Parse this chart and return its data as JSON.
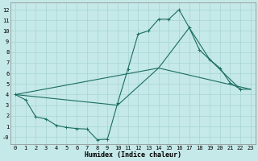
{
  "title": "",
  "xlabel": "Humidex (Indice chaleur)",
  "xlim": [
    -0.5,
    23.5
  ],
  "ylim": [
    -0.7,
    12.7
  ],
  "yticks": [
    0,
    1,
    2,
    3,
    4,
    5,
    6,
    7,
    8,
    9,
    10,
    11,
    12
  ],
  "ytick_labels": [
    "-0",
    "1",
    "2",
    "3",
    "4",
    "5",
    "6",
    "7",
    "8",
    "9",
    "10",
    "11",
    "12"
  ],
  "xticks": [
    0,
    1,
    2,
    3,
    4,
    5,
    6,
    7,
    8,
    9,
    10,
    11,
    12,
    13,
    14,
    15,
    16,
    17,
    18,
    19,
    20,
    21,
    22,
    23
  ],
  "bg_color": "#c5e8e8",
  "grid_color": "#a8d4d4",
  "line_color": "#1a6e60",
  "curve1_x": [
    0,
    1,
    2,
    3,
    4,
    5,
    6,
    7,
    8,
    9,
    10,
    11,
    12,
    13,
    14,
    15,
    16,
    17,
    18,
    19,
    20,
    21,
    22
  ],
  "curve1_y": [
    4.0,
    3.5,
    1.9,
    1.7,
    1.1,
    0.9,
    0.8,
    0.75,
    -0.25,
    -0.2,
    3.2,
    6.4,
    9.7,
    10.0,
    11.1,
    11.1,
    12.0,
    10.3,
    8.2,
    7.3,
    6.5,
    5.1,
    4.5
  ],
  "curve2_x": [
    0,
    10,
    14,
    17,
    19,
    22,
    23
  ],
  "curve2_y": [
    4.0,
    3.0,
    6.5,
    10.3,
    7.3,
    4.5,
    4.5
  ],
  "curve3_x": [
    0,
    14,
    23
  ],
  "curve3_y": [
    4.0,
    6.5,
    4.5
  ]
}
